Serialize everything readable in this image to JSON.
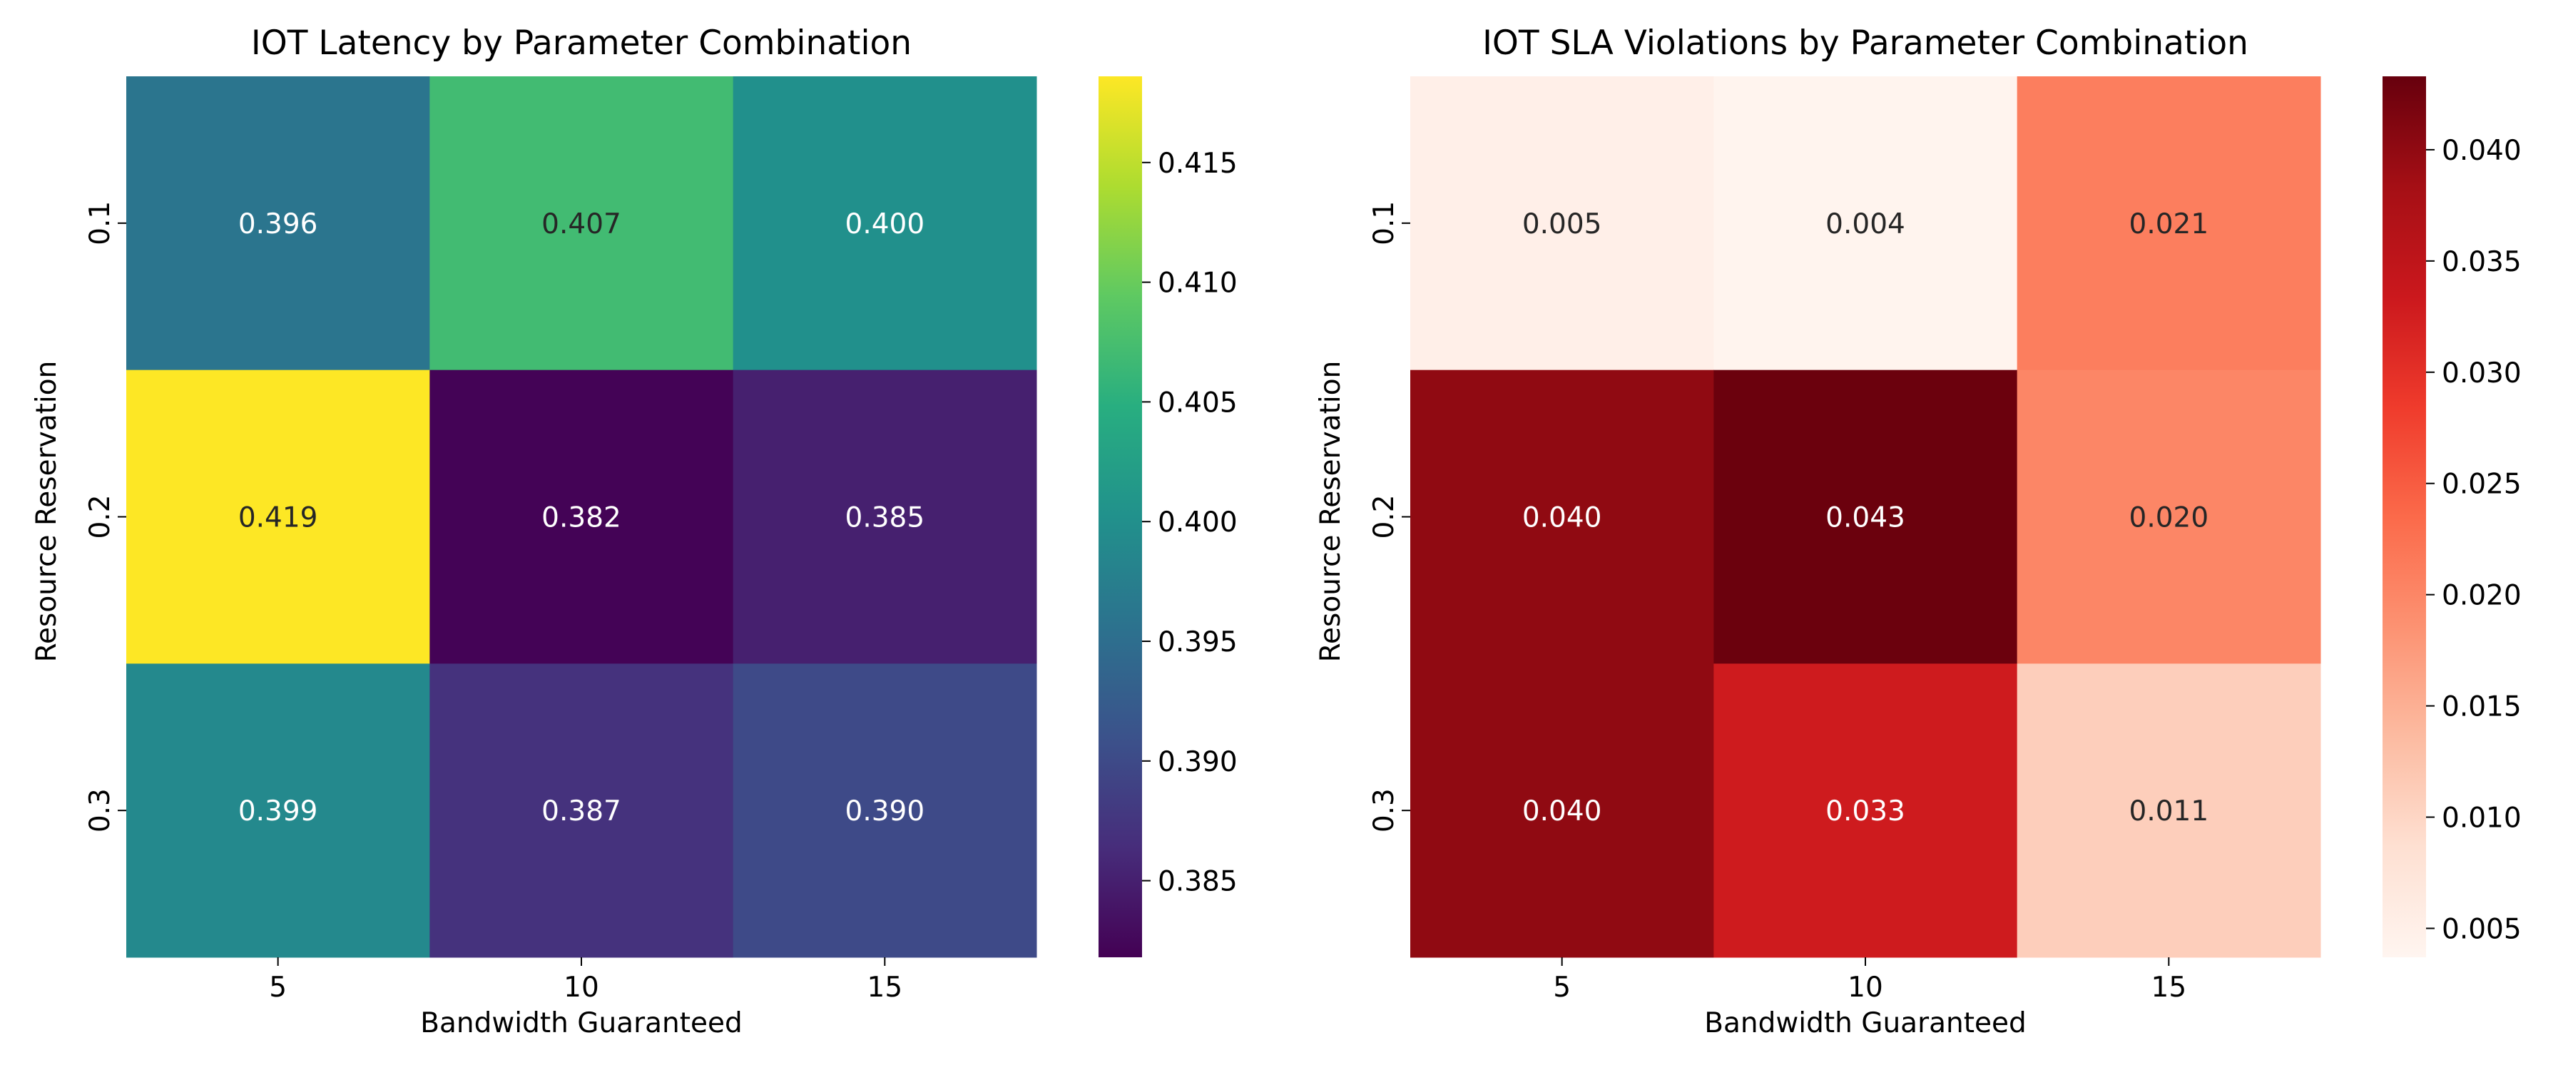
{
  "chart_data": [
    {
      "type": "heatmap",
      "title": "IOT Latency by Parameter Combination",
      "xlabel": "Bandwidth Guaranteed",
      "ylabel": "Resource Reservation",
      "x_categories": [
        "5",
        "10",
        "15"
      ],
      "y_categories": [
        "0.1",
        "0.2",
        "0.3"
      ],
      "values": [
        [
          0.396,
          0.407,
          0.4
        ],
        [
          0.419,
          0.382,
          0.385
        ],
        [
          0.399,
          0.387,
          0.39
        ]
      ],
      "cell_labels": [
        [
          "0.396",
          "0.407",
          "0.400"
        ],
        [
          "0.419",
          "0.382",
          "0.385"
        ],
        [
          "0.399",
          "0.387",
          "0.390"
        ]
      ],
      "colormap": "viridis",
      "colorbar": {
        "range": [
          0.3818,
          0.4186
        ],
        "ticks": [
          0.385,
          0.39,
          0.395,
          0.4,
          0.405,
          0.41,
          0.415
        ],
        "tick_labels": [
          "0.385",
          "0.390",
          "0.395",
          "0.400",
          "0.405",
          "0.410",
          "0.415"
        ]
      },
      "grid": false,
      "legend": "colorbar-right"
    },
    {
      "type": "heatmap",
      "title": "IOT SLA Violations by Parameter Combination",
      "xlabel": "Bandwidth Guaranteed",
      "ylabel": "Resource Reservation",
      "x_categories": [
        "5",
        "10",
        "15"
      ],
      "y_categories": [
        "0.1",
        "0.2",
        "0.3"
      ],
      "values": [
        [
          0.005,
          0.004,
          0.021
        ],
        [
          0.04,
          0.043,
          0.02
        ],
        [
          0.04,
          0.033,
          0.011
        ]
      ],
      "cell_labels": [
        [
          "0.005",
          "0.004",
          "0.021"
        ],
        [
          "0.040",
          "0.043",
          "0.020"
        ],
        [
          "0.040",
          "0.033",
          "0.011"
        ]
      ],
      "colormap": "Reds",
      "colorbar": {
        "range": [
          0.0037,
          0.0433
        ],
        "ticks": [
          0.005,
          0.01,
          0.015,
          0.02,
          0.025,
          0.03,
          0.035,
          0.04
        ],
        "tick_labels": [
          "0.005",
          "0.010",
          "0.015",
          "0.020",
          "0.025",
          "0.030",
          "0.035",
          "0.040"
        ]
      },
      "grid": false,
      "legend": "colorbar-right"
    }
  ]
}
